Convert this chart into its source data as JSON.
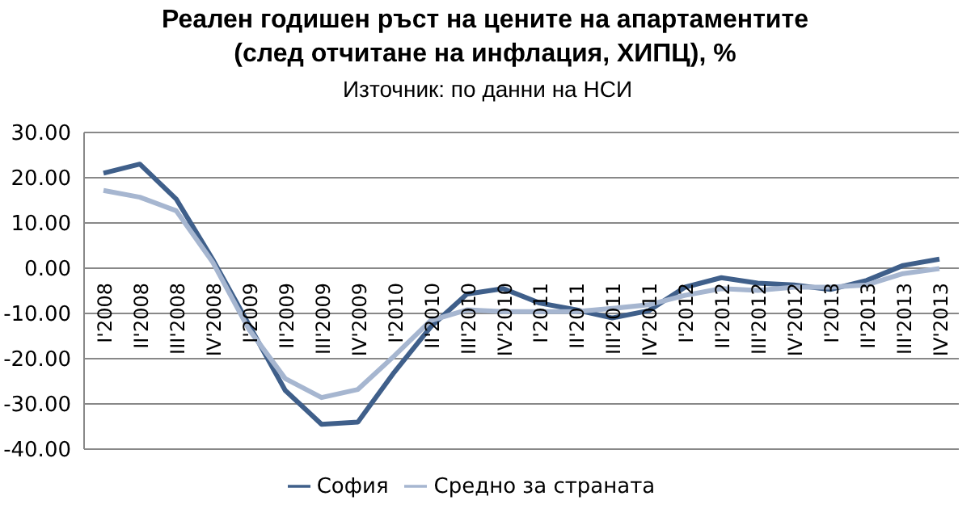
{
  "chart_data": {
    "type": "line",
    "title": "Реален годишен ръст на цените на апартаментите (след отчитане на инфлация, ХИПЦ), %",
    "subtitle": "Източник: по данни на НСИ",
    "categories": [
      "I'2008",
      "II'2008",
      "III'2008",
      "IV'2008",
      "I'2009",
      "II'2009",
      "III'2009",
      "IV'2009",
      "I'2010",
      "II'2010",
      "III'2010",
      "IV'2010",
      "I'2011",
      "II'2011",
      "III'2011",
      "IV'2011",
      "I'2012",
      "II'2012",
      "III'2012",
      "IV'2012",
      "I'2013",
      "II'2013",
      "III'2013",
      "IV'2013"
    ],
    "series": [
      {
        "name": "София",
        "color": "#3f5f8a",
        "values": [
          21,
          23,
          15.3,
          2,
          -12.5,
          -27,
          -34.5,
          -34,
          -23,
          -13,
          -5.7,
          -4.5,
          -7.7,
          -9.2,
          -11,
          -9.4,
          -4.2,
          -2.1,
          -3.3,
          -3.7,
          -4.7,
          -2.7,
          0.6,
          2
        ]
      },
      {
        "name": "Средно за страната",
        "color": "#a6b6d0",
        "values": [
          17.2,
          15.7,
          12.7,
          1.4,
          -13.5,
          -24.4,
          -28.6,
          -26.8,
          -19.4,
          -11.6,
          -9.2,
          -9.6,
          -9.6,
          -9.6,
          -8.9,
          -8.1,
          -6,
          -4.5,
          -4.9,
          -4.2,
          -4.2,
          -3.7,
          -1.2,
          -0.1
        ]
      }
    ],
    "ylim": [
      -40,
      30
    ],
    "yticks": [
      {
        "value": -40,
        "label": "-40.00"
      },
      {
        "value": -30,
        "label": "-30.00"
      },
      {
        "value": -20,
        "label": "-20.00"
      },
      {
        "value": -10,
        "label": "-10.00"
      },
      {
        "value": 0,
        "label": "0.00"
      },
      {
        "value": 10,
        "label": "10.00"
      },
      {
        "value": 20,
        "label": "20.00"
      },
      {
        "value": 30,
        "label": "30.00"
      }
    ],
    "grid": "y",
    "legend": "bottom",
    "marker": "none",
    "line_style": "solid"
  }
}
